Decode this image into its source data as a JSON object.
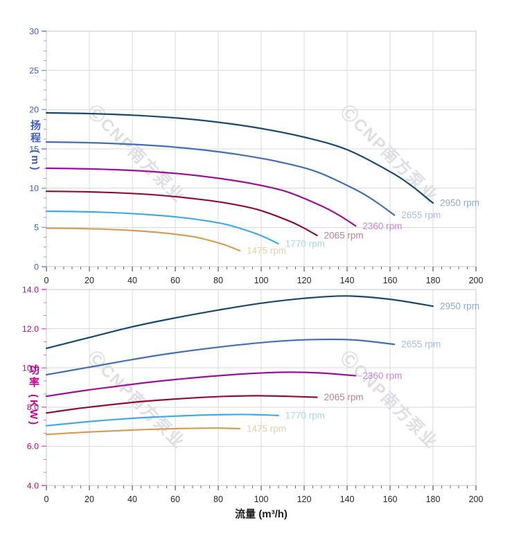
{
  "x_axis_title": "流量 (m³/h)",
  "x_axis": {
    "min": 0,
    "max": 200,
    "major_step": 20,
    "minor_step": 4,
    "tick_labels": [
      "0",
      "20",
      "40",
      "60",
      "80",
      "100",
      "120",
      "140",
      "160",
      "180",
      "200"
    ],
    "tick_label_color": "#262626"
  },
  "watermark": {
    "text": "ⒸCNP南方泵业",
    "color": "#dedee5",
    "angle_deg": 45
  },
  "chart_data": [
    {
      "type": "line",
      "title": "",
      "xlabel": "流量 (m³/h)",
      "ylabel": "扬程 (m)",
      "xlim": [
        0,
        200
      ],
      "ylim": [
        0,
        30
      ],
      "y_major_step": 5,
      "y_minor_divisions": 4,
      "y_tick_labels": [
        "0",
        "5",
        "10",
        "15",
        "20",
        "25",
        "30"
      ],
      "y_label_color": "#3d5cc9",
      "y_tick_color": "#93a0e8",
      "grid": true,
      "legend_position": "curve-ends",
      "series": [
        {
          "name": "2950 rpm",
          "color": "#17496f",
          "label_color": "#8fabc9",
          "points": [
            [
              0,
              19.6
            ],
            [
              20,
              19.5
            ],
            [
              40,
              19.3
            ],
            [
              60,
              18.95
            ],
            [
              80,
              18.4
            ],
            [
              100,
              17.6
            ],
            [
              120,
              16.5
            ],
            [
              140,
              14.9
            ],
            [
              160,
              12.1
            ],
            [
              170,
              10.3
            ],
            [
              180,
              8.1
            ]
          ]
        },
        {
          "name": "2655 rpm",
          "color": "#3f6fb5",
          "label_color": "#a9bbe6",
          "points": [
            [
              0,
              15.88
            ],
            [
              18,
              15.8
            ],
            [
              36,
              15.63
            ],
            [
              54,
              15.35
            ],
            [
              72,
              14.9
            ],
            [
              90,
              14.26
            ],
            [
              108,
              13.37
            ],
            [
              126,
              12.07
            ],
            [
              144,
              9.8
            ],
            [
              153,
              8.34
            ],
            [
              162,
              6.56
            ]
          ]
        },
        {
          "name": "2360 rpm",
          "color": "#9b0f9b",
          "label_color": "#c688d4",
          "points": [
            [
              0,
              12.54
            ],
            [
              16,
              12.48
            ],
            [
              32,
              12.35
            ],
            [
              48,
              12.13
            ],
            [
              64,
              11.78
            ],
            [
              80,
              11.26
            ],
            [
              96,
              10.56
            ],
            [
              112,
              9.54
            ],
            [
              128,
              7.74
            ],
            [
              136,
              6.59
            ],
            [
              144,
              5.18
            ]
          ]
        },
        {
          "name": "2065 rpm",
          "color": "#8e0f35",
          "label_color": "#bc7f97",
          "points": [
            [
              0,
              9.6
            ],
            [
              14,
              9.56
            ],
            [
              28,
              9.46
            ],
            [
              42,
              9.29
            ],
            [
              56,
              9.02
            ],
            [
              70,
              8.62
            ],
            [
              84,
              8.09
            ],
            [
              98,
              7.3
            ],
            [
              112,
              5.93
            ],
            [
              119,
              5.05
            ],
            [
              126,
              3.97
            ]
          ]
        },
        {
          "name": "1770 rpm",
          "color": "#3fabe4",
          "label_color": "#a5d7f2",
          "points": [
            [
              0,
              7.06
            ],
            [
              12,
              7.02
            ],
            [
              24,
              6.95
            ],
            [
              36,
              6.82
            ],
            [
              48,
              6.62
            ],
            [
              60,
              6.34
            ],
            [
              72,
              5.94
            ],
            [
              84,
              5.36
            ],
            [
              96,
              4.36
            ],
            [
              102,
              3.71
            ],
            [
              108,
              2.92
            ]
          ]
        },
        {
          "name": "1475 rpm",
          "color": "#d79d58",
          "label_color": "#e9cfa6",
          "points": [
            [
              0,
              4.9
            ],
            [
              10,
              4.88
            ],
            [
              20,
              4.83
            ],
            [
              30,
              4.74
            ],
            [
              40,
              4.6
            ],
            [
              50,
              4.4
            ],
            [
              60,
              4.13
            ],
            [
              70,
              3.73
            ],
            [
              80,
              3.03
            ],
            [
              85,
              2.58
            ],
            [
              90,
              2.03
            ]
          ]
        }
      ]
    },
    {
      "type": "line",
      "title": "",
      "xlabel": "流量 (m³/h)",
      "ylabel": "功率 (KW)",
      "xlim": [
        0,
        200
      ],
      "ylim": [
        4,
        14
      ],
      "y_major_step": 2,
      "y_minor_divisions": 3,
      "y_tick_labels": [
        "4.0",
        "6.0",
        "8.0",
        "10.0",
        "12.0",
        "14.0"
      ],
      "y_label_color": "#c4058e",
      "y_tick_color": "#e36fc0",
      "grid": true,
      "legend_position": "curve-ends",
      "series": [
        {
          "name": "2950 rpm",
          "color": "#17496f",
          "label_color": "#8fabc9",
          "points": [
            [
              0,
              11.0
            ],
            [
              20,
              11.55
            ],
            [
              40,
              12.1
            ],
            [
              60,
              12.55
            ],
            [
              80,
              12.95
            ],
            [
              100,
              13.3
            ],
            [
              120,
              13.55
            ],
            [
              140,
              13.67
            ],
            [
              160,
              13.5
            ],
            [
              180,
              13.15
            ]
          ]
        },
        {
          "name": "2655 rpm",
          "color": "#3f6fb5",
          "label_color": "#a9bbe6",
          "points": [
            [
              0,
              9.65
            ],
            [
              18,
              10.0
            ],
            [
              36,
              10.35
            ],
            [
              54,
              10.68
            ],
            [
              72,
              10.95
            ],
            [
              90,
              11.18
            ],
            [
              108,
              11.36
            ],
            [
              126,
              11.45
            ],
            [
              144,
              11.42
            ],
            [
              162,
              11.2
            ]
          ]
        },
        {
          "name": "2360 rpm",
          "color": "#9b0f9b",
          "label_color": "#c688d4",
          "points": [
            [
              0,
              8.55
            ],
            [
              16,
              8.82
            ],
            [
              32,
              9.05
            ],
            [
              48,
              9.27
            ],
            [
              64,
              9.45
            ],
            [
              80,
              9.6
            ],
            [
              96,
              9.72
            ],
            [
              112,
              9.78
            ],
            [
              128,
              9.74
            ],
            [
              144,
              9.6
            ]
          ]
        },
        {
          "name": "2065 rpm",
          "color": "#8e0f35",
          "label_color": "#bc7f97",
          "points": [
            [
              0,
              7.7
            ],
            [
              14,
              7.92
            ],
            [
              28,
              8.1
            ],
            [
              42,
              8.26
            ],
            [
              56,
              8.38
            ],
            [
              70,
              8.48
            ],
            [
              84,
              8.55
            ],
            [
              98,
              8.58
            ],
            [
              112,
              8.55
            ],
            [
              126,
              8.5
            ]
          ]
        },
        {
          "name": "1770 rpm",
          "color": "#3fabe4",
          "label_color": "#a5d7f2",
          "points": [
            [
              0,
              7.05
            ],
            [
              12,
              7.18
            ],
            [
              24,
              7.3
            ],
            [
              36,
              7.4
            ],
            [
              48,
              7.48
            ],
            [
              60,
              7.54
            ],
            [
              72,
              7.59
            ],
            [
              84,
              7.62
            ],
            [
              96,
              7.62
            ],
            [
              108,
              7.57
            ]
          ]
        },
        {
          "name": "1475 rpm",
          "color": "#d79d58",
          "label_color": "#e9cfa6",
          "points": [
            [
              0,
              6.6
            ],
            [
              10,
              6.67
            ],
            [
              20,
              6.73
            ],
            [
              30,
              6.78
            ],
            [
              40,
              6.83
            ],
            [
              50,
              6.87
            ],
            [
              60,
              6.9
            ],
            [
              70,
              6.92
            ],
            [
              80,
              6.93
            ],
            [
              90,
              6.9
            ]
          ]
        }
      ]
    }
  ]
}
